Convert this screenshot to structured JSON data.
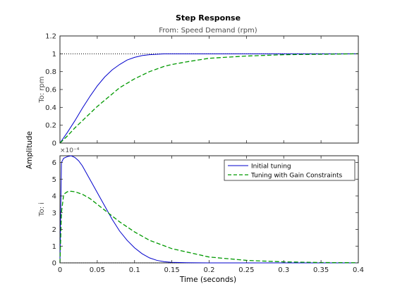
{
  "chart_data": {
    "type": "line",
    "title": "Step Response",
    "subtitle": "From: Speed Demand (rpm)",
    "xlabel": "Time (seconds)",
    "ylabel": "Amplitude",
    "xlim": [
      0,
      0.4
    ],
    "x_ticks": [
      "0",
      "0.05",
      "0.1",
      "0.15",
      "0.2",
      "0.25",
      "0.3",
      "0.35",
      "0.4"
    ],
    "legend_position": "top-right",
    "legend_entries": [
      "Initial tuning",
      "Tuning with Gain Constraints"
    ],
    "colors": {
      "initial": "#0000cc",
      "constrained": "#009900"
    },
    "panels": [
      {
        "row_label": "To: rpm",
        "ylim": [
          0,
          1.2
        ],
        "y_ticks": [
          "0",
          "0.2",
          "0.4",
          "0.6",
          "0.8",
          "1",
          "1.2"
        ],
        "reference_line": 1,
        "series": [
          {
            "name": "Initial tuning",
            "style": "solid",
            "x": [
              0,
              0.01,
              0.02,
              0.03,
              0.04,
              0.05,
              0.06,
              0.07,
              0.08,
              0.09,
              0.1,
              0.11,
              0.12,
              0.13,
              0.14,
              0.15,
              0.2,
              0.25,
              0.3,
              0.35,
              0.4
            ],
            "y": [
              0,
              0.12,
              0.25,
              0.39,
              0.52,
              0.64,
              0.74,
              0.82,
              0.88,
              0.93,
              0.96,
              0.98,
              0.99,
              0.995,
              1.0,
              1.0,
              1.0,
              1.0,
              1.0,
              1.0,
              1.0
            ]
          },
          {
            "name": "Tuning with Gain Constraints",
            "style": "dashed",
            "x": [
              0,
              0.01,
              0.02,
              0.03,
              0.04,
              0.05,
              0.06,
              0.07,
              0.08,
              0.09,
              0.1,
              0.11,
              0.12,
              0.13,
              0.14,
              0.15,
              0.17,
              0.2,
              0.25,
              0.3,
              0.35,
              0.4
            ],
            "y": [
              0,
              0.08,
              0.17,
              0.25,
              0.33,
              0.41,
              0.48,
              0.55,
              0.62,
              0.67,
              0.72,
              0.76,
              0.8,
              0.83,
              0.86,
              0.88,
              0.91,
              0.95,
              0.975,
              0.99,
              0.995,
              1.0
            ]
          }
        ]
      },
      {
        "row_label": "To: i",
        "exponent_label": "×10⁻⁴",
        "ylim": [
          0,
          6.4
        ],
        "y_ticks": [
          "0",
          "1",
          "2",
          "3",
          "4",
          "5",
          "6"
        ],
        "reference_line": 0,
        "series": [
          {
            "name": "Initial tuning",
            "style": "solid",
            "x": [
              0,
              0.002,
              0.005,
              0.01,
              0.015,
              0.02,
              0.025,
              0.03,
              0.04,
              0.05,
              0.06,
              0.07,
              0.08,
              0.09,
              0.1,
              0.11,
              0.12,
              0.13,
              0.14,
              0.15,
              0.17,
              0.2,
              0.25,
              0.3,
              0.4
            ],
            "y": [
              0,
              6.0,
              6.25,
              6.35,
              6.4,
              6.3,
              6.1,
              5.8,
              5.0,
              4.2,
              3.4,
              2.6,
              1.9,
              1.35,
              0.9,
              0.55,
              0.3,
              0.15,
              0.07,
              0.03,
              0.01,
              0,
              0,
              0,
              0
            ]
          },
          {
            "name": "Tuning with Gain Constraints",
            "style": "dashed",
            "x": [
              0,
              0.002,
              0.005,
              0.01,
              0.015,
              0.02,
              0.03,
              0.04,
              0.05,
              0.06,
              0.07,
              0.08,
              0.1,
              0.12,
              0.15,
              0.2,
              0.25,
              0.3,
              0.35,
              0.4
            ],
            "y": [
              0,
              3.0,
              4.1,
              4.25,
              4.28,
              4.25,
              4.1,
              3.85,
              3.5,
              3.15,
              2.8,
              2.45,
              1.85,
              1.35,
              0.85,
              0.35,
              0.15,
              0.06,
              0.02,
              0.01
            ]
          }
        ]
      }
    ]
  }
}
